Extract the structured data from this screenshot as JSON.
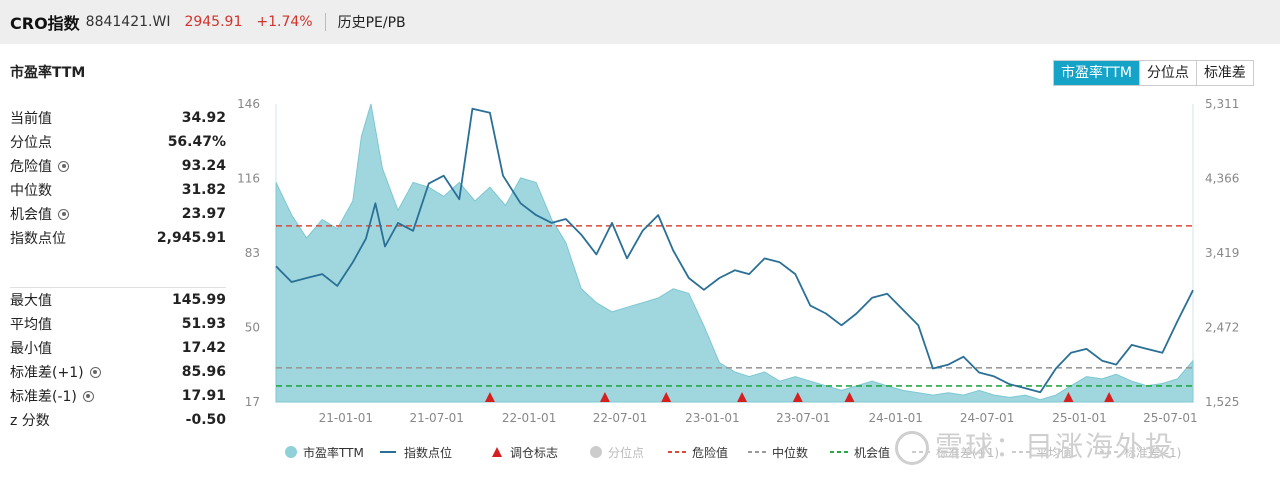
{
  "header": {
    "name": "CRO指数",
    "code": "8841421.WI",
    "price": "2945.91",
    "change": "+1.74%",
    "link": "历史PE/PB"
  },
  "panel_title": "市盈率TTM",
  "buttons": [
    "市盈率TTM",
    "分位点",
    "标准差"
  ],
  "stats_top": [
    {
      "label": "当前值",
      "value": "34.92",
      "gear": false
    },
    {
      "label": "分位点",
      "value": "56.47%",
      "gear": false
    },
    {
      "label": "危险值",
      "value": "93.24",
      "gear": true
    },
    {
      "label": "中位数",
      "value": "31.82",
      "gear": false
    },
    {
      "label": "机会值",
      "value": "23.97",
      "gear": true
    },
    {
      "label": "指数点位",
      "value": "2,945.91",
      "gear": false
    }
  ],
  "stats_bottom": [
    {
      "label": "最大值",
      "value": "145.99",
      "gear": false
    },
    {
      "label": "平均值",
      "value": "51.93",
      "gear": false
    },
    {
      "label": "最小值",
      "value": "17.42",
      "gear": false
    },
    {
      "label": "标准差(+1)",
      "value": "85.96",
      "gear": true
    },
    {
      "label": "标准差(-1)",
      "value": "17.91",
      "gear": true
    },
    {
      "label": "z 分数",
      "value": "-0.50",
      "gear": false
    }
  ],
  "watermark": "雪球：目涨海外投",
  "colors": {
    "pe_fill": "#8fd0d9",
    "index_line": "#2a6f96",
    "marker": "#d62020",
    "danger": "#d84a3a",
    "median": "#999999",
    "opportunity": "#28a745",
    "accent": "#16a3c8",
    "red_text": "#d0342c"
  },
  "chart_data": {
    "type": "area+line",
    "x_ticks": [
      "21-01-01",
      "21-07-01",
      "22-01-01",
      "22-07-01",
      "23-01-01",
      "23-07-01",
      "24-01-01",
      "24-07-01",
      "25-01-01",
      "25-07-01"
    ],
    "x_range": [
      "2020-08-15",
      "2025-08-15"
    ],
    "left_axis": {
      "ticks": [
        "146",
        "116",
        "83",
        "50",
        "17"
      ],
      "range": [
        17,
        146
      ]
    },
    "right_axis": {
      "ticks": [
        "5,311",
        "4,366",
        "3,419",
        "2,472",
        "1,525"
      ],
      "range": [
        1525,
        5311
      ]
    },
    "pe_series": {
      "name": "市盈率TTM",
      "dates": [
        "2020-08-15",
        "2020-09-15",
        "2020-10-15",
        "2020-11-15",
        "2020-12-15",
        "2021-01-15",
        "2021-02-01",
        "2021-02-20",
        "2021-03-15",
        "2021-04-15",
        "2021-05-15",
        "2021-06-15",
        "2021-07-15",
        "2021-08-15",
        "2021-09-15",
        "2021-10-15",
        "2021-11-15",
        "2021-12-15",
        "2022-01-15",
        "2022-02-15",
        "2022-03-15",
        "2022-04-15",
        "2022-05-15",
        "2022-06-15",
        "2022-07-15",
        "2022-08-15",
        "2022-09-15",
        "2022-10-15",
        "2022-11-15",
        "2022-12-15",
        "2023-01-15",
        "2023-02-15",
        "2023-03-15",
        "2023-04-15",
        "2023-05-15",
        "2023-06-15",
        "2023-07-15",
        "2023-08-15",
        "2023-09-15",
        "2023-10-15",
        "2023-11-15",
        "2023-12-15",
        "2024-01-15",
        "2024-02-15",
        "2024-03-15",
        "2024-04-15",
        "2024-05-15",
        "2024-06-15",
        "2024-07-15",
        "2024-08-15",
        "2024-09-15",
        "2024-10-15",
        "2024-11-15",
        "2024-12-15",
        "2025-01-15",
        "2025-02-15",
        "2025-03-15",
        "2025-04-15",
        "2025-05-15",
        "2025-06-15",
        "2025-07-15",
        "2025-08-15"
      ],
      "values": [
        112,
        98,
        88,
        96,
        92,
        104,
        132,
        146,
        118,
        100,
        112,
        110,
        106,
        112,
        104,
        110,
        102,
        114,
        112,
        96,
        86,
        66,
        60,
        56,
        58,
        60,
        62,
        66,
        64,
        50,
        34,
        30,
        28,
        30,
        26,
        28,
        26,
        24,
        22,
        24,
        26,
        24,
        22,
        21,
        20,
        21,
        20,
        22,
        20,
        19,
        20,
        18,
        20,
        24,
        28,
        27,
        29,
        26,
        24,
        25,
        27,
        34.92
      ]
    },
    "index_series": {
      "name": "指数点位",
      "dates": [
        "2020-08-15",
        "2020-09-15",
        "2020-10-15",
        "2020-11-15",
        "2020-12-15",
        "2021-01-15",
        "2021-02-10",
        "2021-03-01",
        "2021-03-20",
        "2021-04-15",
        "2021-05-15",
        "2021-06-15",
        "2021-07-15",
        "2021-08-15",
        "2021-09-10",
        "2021-10-15",
        "2021-11-10",
        "2021-12-15",
        "2022-01-15",
        "2022-02-15",
        "2022-03-15",
        "2022-04-15",
        "2022-05-15",
        "2022-06-15",
        "2022-07-15",
        "2022-08-15",
        "2022-09-15",
        "2022-10-15",
        "2022-11-15",
        "2022-12-15",
        "2023-01-15",
        "2023-02-15",
        "2023-03-15",
        "2023-04-15",
        "2023-05-15",
        "2023-06-15",
        "2023-07-15",
        "2023-08-15",
        "2023-09-15",
        "2023-10-15",
        "2023-11-15",
        "2023-12-15",
        "2024-01-15",
        "2024-02-15",
        "2024-03-15",
        "2024-04-15",
        "2024-05-15",
        "2024-06-15",
        "2024-07-15",
        "2024-08-15",
        "2024-09-15",
        "2024-10-15",
        "2024-11-15",
        "2024-12-15",
        "2025-01-15",
        "2025-02-15",
        "2025-03-15",
        "2025-04-15",
        "2025-05-15",
        "2025-06-15",
        "2025-07-15",
        "2025-08-15"
      ],
      "values": [
        3250,
        3050,
        3100,
        3150,
        3000,
        3300,
        3600,
        4050,
        3500,
        3800,
        3700,
        4300,
        4400,
        4100,
        5250,
        5200,
        4400,
        4050,
        3900,
        3800,
        3850,
        3650,
        3400,
        3800,
        3350,
        3700,
        3900,
        3450,
        3100,
        2950,
        3100,
        3200,
        3150,
        3350,
        3300,
        3150,
        2750,
        2650,
        2500,
        2650,
        2850,
        2900,
        2700,
        2500,
        1950,
        2000,
        2100,
        1900,
        1850,
        1750,
        1700,
        1650,
        1950,
        2150,
        2200,
        2050,
        2000,
        2250,
        2200,
        2150,
        2550,
        2945.91
      ]
    },
    "markers": {
      "name": "调仓标志",
      "dates": [
        "2021-10-15",
        "2022-06-01",
        "2022-10-01",
        "2023-03-01",
        "2023-06-20",
        "2023-10-01",
        "2024-12-10",
        "2025-03-01"
      ]
    },
    "reference_lines": [
      {
        "name": "危险值",
        "value": 93.24,
        "style": "dashed",
        "color": "#d84a3a"
      },
      {
        "name": "中位数",
        "value": 31.82,
        "style": "dashed",
        "color": "#999999"
      },
      {
        "name": "机会值",
        "value": 23.97,
        "style": "dashed",
        "color": "#28a745"
      }
    ],
    "legend": [
      "市盈率TTM",
      "指数点位",
      "调仓标志",
      "分位点",
      "危险值",
      "中位数",
      "机会值",
      "标准差(+1)",
      "平均值",
      "标准差(-1)"
    ],
    "legend_placement": "bottom",
    "grid": false
  }
}
